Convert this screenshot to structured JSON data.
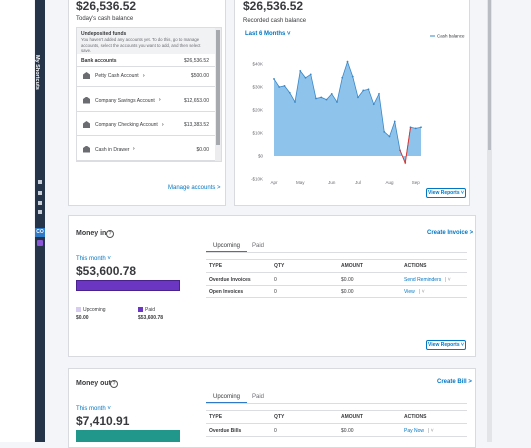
{
  "sidebar": {
    "label": "My Shortcuts",
    "badge": "CO"
  },
  "bank_card": {
    "amount": "$26,536.52",
    "subtitle": "Today's cash balance",
    "undeposited": {
      "title": "Undeposited funds",
      "text": "You haven't added any accounts yet. To do this, go to manage accounts, select the accounts you want to add, and then select save."
    },
    "bank_accounts": {
      "label": "Bank accounts",
      "amount": "$26,536.52"
    },
    "accounts": [
      {
        "name": "Petty Cash Account",
        "amount": "$500.00"
      },
      {
        "name": "Company Savings Account",
        "amount": "$12,653.00"
      },
      {
        "name": "Company Checking Account",
        "amount": "$13,383.52"
      },
      {
        "name": "Cash in Drawer",
        "amount": "$0.00"
      }
    ],
    "link": "Manage accounts >"
  },
  "cash_card": {
    "amount": "$26,536.52",
    "subtitle": "Recorded cash balance",
    "period": "Last 6 Months",
    "button": "View Reports",
    "chart": {
      "type": "line",
      "legend": "Cash balance",
      "color": "#3a87c7",
      "fill": "#8ec3eb",
      "negative_color": "#e0312a",
      "values": [
        33500,
        30000,
        30500,
        27500,
        23500,
        37000,
        34000,
        35500,
        25000,
        25500,
        24500,
        27000,
        23500,
        34000,
        41000,
        34500,
        25500,
        28500,
        29000,
        22500,
        27000,
        10500,
        8500,
        15000,
        2500,
        -3000,
        12500,
        12000,
        12500
      ],
      "xlim": [
        0,
        28
      ],
      "xticks": [
        {
          "value": 0,
          "label": "Apr"
        },
        {
          "value": 5,
          "label": "May"
        },
        {
          "value": 11,
          "label": "Jun"
        },
        {
          "value": 16,
          "label": "Jul"
        },
        {
          "value": 22,
          "label": "Aug"
        },
        {
          "value": 27,
          "label": "Sep"
        }
      ],
      "ylim": [
        -10000,
        45000
      ],
      "yticks": [
        {
          "value": -10000,
          "label": "-$10K"
        },
        {
          "value": 0,
          "label": "$0"
        },
        {
          "value": 10000,
          "label": "$10K"
        },
        {
          "value": 20000,
          "label": "$20K"
        },
        {
          "value": 30000,
          "label": "$30K"
        },
        {
          "value": 40000,
          "label": "$40K"
        }
      ]
    }
  },
  "money_in": {
    "title": "Money in",
    "period": "This month",
    "amount": "$53,600.78",
    "link": "Create Invoice >",
    "tabs": [
      "Upcoming",
      "Paid"
    ],
    "legend": [
      {
        "label": "Upcoming",
        "amount": "$0.00"
      },
      {
        "label": "Paid",
        "amount": "$53,600.78"
      }
    ],
    "table": {
      "headers": [
        "TYPE",
        "QTY",
        "AMOUNT",
        "ACTIONS"
      ],
      "rows": [
        [
          "Overdue Invoices",
          "0",
          "$0.00",
          "Send Reminders"
        ],
        [
          "Open Invoices",
          "0",
          "$0.00",
          "View"
        ]
      ]
    },
    "button": "View Reports"
  },
  "money_out": {
    "title": "Money out",
    "period": "This month",
    "amount": "$7,410.91",
    "link": "Create Bill >",
    "tabs": [
      "Upcoming",
      "Paid"
    ],
    "table": {
      "headers": [
        "TYPE",
        "QTY",
        "AMOUNT",
        "ACTIONS"
      ],
      "rows": [
        [
          "Overdue Bills",
          "0",
          "$0.00",
          "Pay Now"
        ]
      ]
    }
  }
}
